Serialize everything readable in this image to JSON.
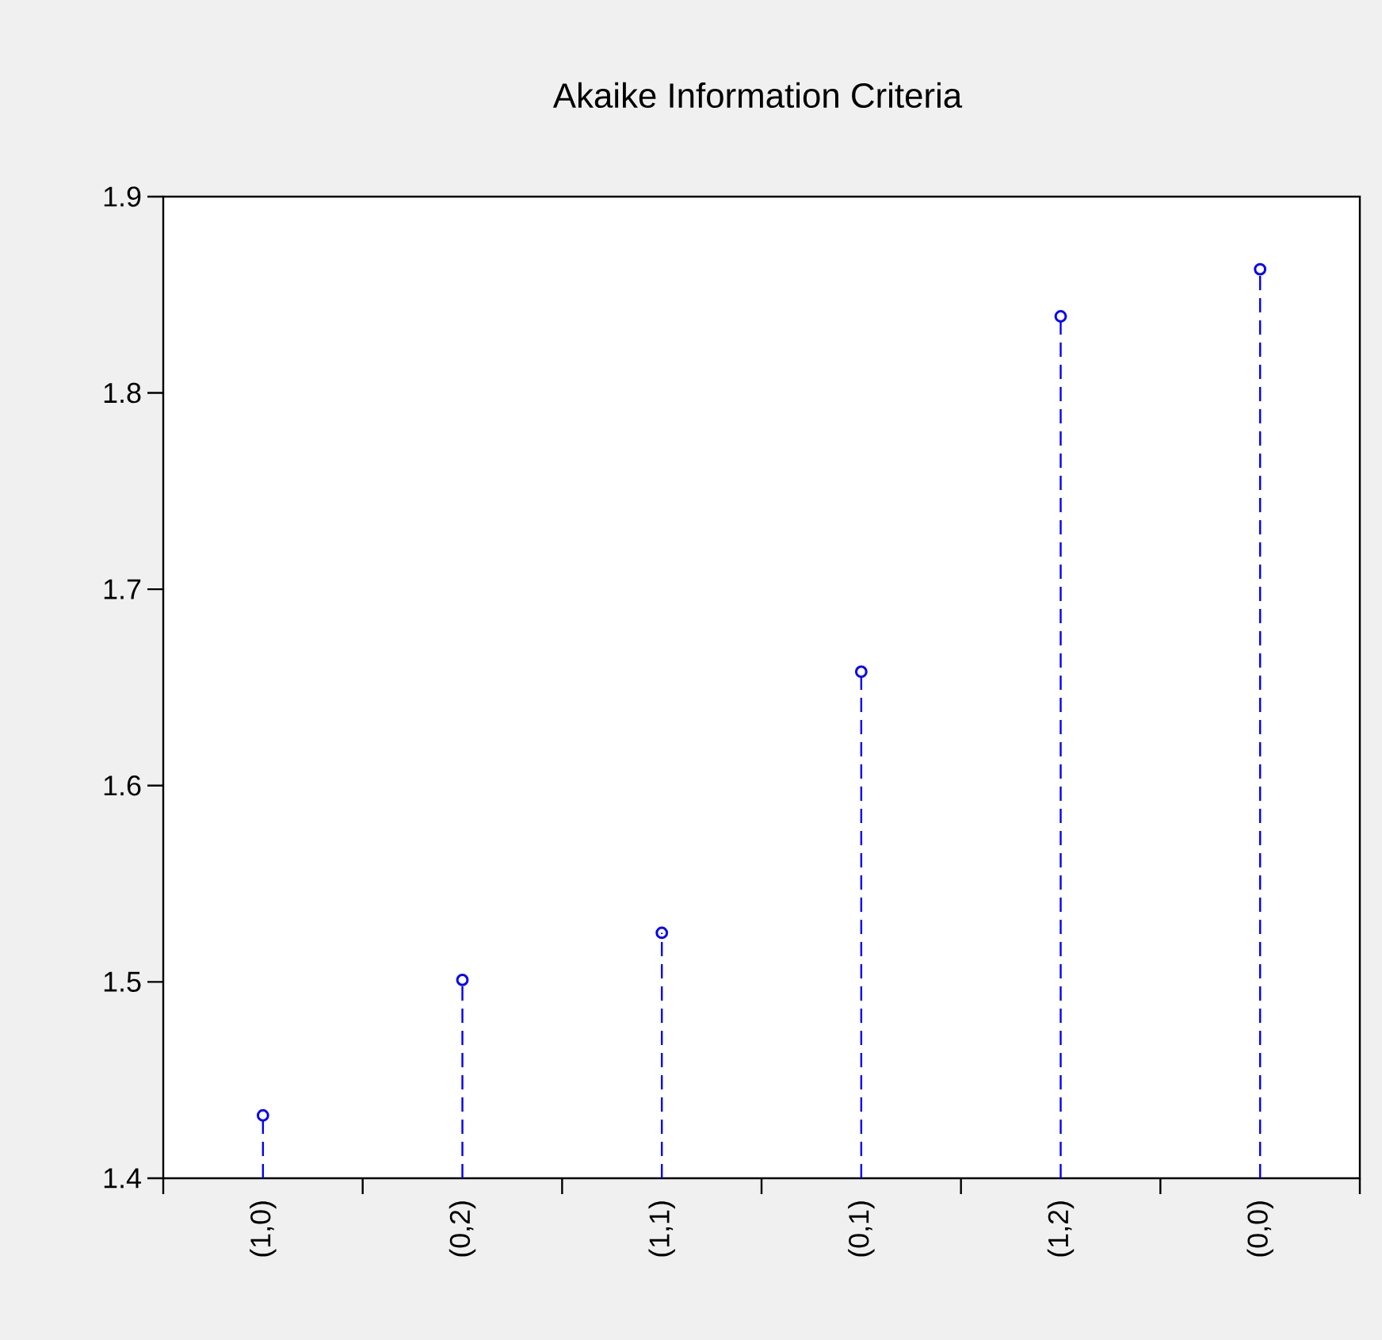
{
  "chart_data": {
    "type": "lollipop",
    "title": "Akaike Information Criteria",
    "categories": [
      "(1,0)",
      "(0,2)",
      "(1,1)",
      "(0,1)",
      "(1,2)",
      "(0,0)"
    ],
    "values": [
      1.432,
      1.501,
      1.525,
      1.658,
      1.839,
      1.863
    ],
    "color": "#0000ff",
    "ylim": [
      1.4,
      1.9
    ],
    "yticks": [
      1.4,
      1.5,
      1.6,
      1.7,
      1.8,
      1.9
    ],
    "marker": "circle",
    "line_style": "dashed"
  }
}
